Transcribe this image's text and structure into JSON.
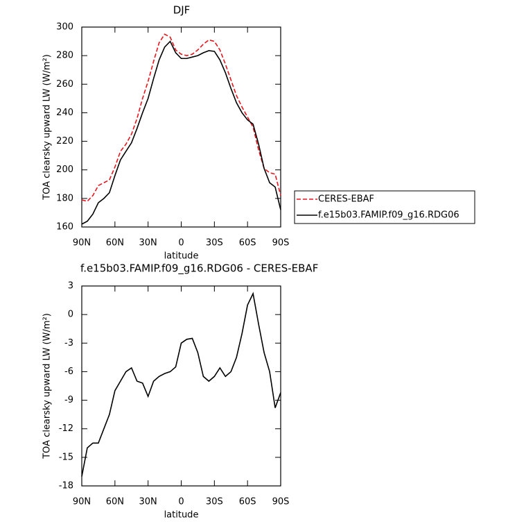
{
  "chart_data": [
    {
      "type": "line",
      "title": "DJF",
      "x_label": "latitude",
      "y_label": "TOA clearsky upward LW (W/m²)",
      "x": [
        90,
        85,
        80,
        75,
        70,
        65,
        60,
        55,
        50,
        45,
        40,
        35,
        30,
        25,
        20,
        15,
        10,
        5,
        0,
        -5,
        -10,
        -15,
        -20,
        -25,
        -30,
        -35,
        -40,
        -45,
        -50,
        -55,
        -60,
        -65,
        -70,
        -75,
        -80,
        -85,
        -90
      ],
      "xlim": [
        90,
        -90
      ],
      "xticks": [
        {
          "value": 90,
          "label": "90N"
        },
        {
          "value": 60,
          "label": "60N"
        },
        {
          "value": 30,
          "label": "30N"
        },
        0,
        {
          "value": -30,
          "label": "30S"
        },
        {
          "value": -60,
          "label": "60S"
        },
        {
          "value": -90,
          "label": "90S"
        }
      ],
      "ylim": [
        160,
        300
      ],
      "yticks": [
        160,
        180,
        200,
        220,
        240,
        260,
        280,
        300
      ],
      "series": [
        {
          "name": "CERES-EBAF",
          "color": "#e8141c",
          "dashed": true,
          "values": [
            179,
            178,
            182,
            189,
            191,
            193,
            202,
            213,
            218,
            225,
            236,
            250,
            262,
            276,
            289,
            295,
            293,
            284,
            281,
            280,
            281,
            284,
            288,
            291,
            290,
            284,
            274,
            263,
            252,
            244,
            237,
            230,
            214,
            201,
            198,
            197,
            182
          ]
        },
        {
          "name": "f.e15b03.FAMIP.f09_g16.RDG06",
          "color": "#000000",
          "dashed": false,
          "values": [
            162,
            164,
            169,
            177,
            180,
            184,
            196,
            207,
            213,
            219,
            229,
            240,
            250,
            264,
            277,
            286,
            290,
            282,
            278,
            278,
            279,
            280,
            282,
            283.5,
            283,
            277,
            268,
            257,
            247,
            240,
            235,
            232,
            218,
            201,
            191,
            188,
            172
          ]
        }
      ]
    },
    {
      "type": "line",
      "title": "f.e15b03.FAMIP.f09_g16.RDG06 - CERES-EBAF",
      "x_label": "latitude",
      "y_label": "TOA clearsky upward LW (W/m²)",
      "x": [
        90,
        85,
        80,
        75,
        70,
        65,
        60,
        55,
        50,
        45,
        40,
        35,
        30,
        25,
        20,
        15,
        10,
        5,
        0,
        -5,
        -10,
        -15,
        -20,
        -25,
        -30,
        -35,
        -40,
        -45,
        -50,
        -55,
        -60,
        -65,
        -70,
        -75,
        -80,
        -85,
        -90
      ],
      "xlim": [
        90,
        -90
      ],
      "xticks": [
        {
          "value": 90,
          "label": "90N"
        },
        {
          "value": 60,
          "label": "60N"
        },
        {
          "value": 30,
          "label": "30N"
        },
        0,
        {
          "value": -30,
          "label": "30S"
        },
        {
          "value": -60,
          "label": "60S"
        },
        {
          "value": -90,
          "label": "90S"
        }
      ],
      "ylim": [
        -18,
        3
      ],
      "yticks": [
        -18,
        -15,
        -12,
        -9,
        -6,
        -3,
        0,
        3
      ],
      "series": [
        {
          "color": "#000000",
          "dashed": false,
          "values": [
            -17,
            -14,
            -13.5,
            -13.5,
            -12,
            -10.5,
            -8,
            -7,
            -6,
            -5.6,
            -7,
            -7.2,
            -8.6,
            -7,
            -6.5,
            -6.2,
            -6,
            -5.5,
            -3,
            -2.6,
            -2.5,
            -4,
            -6.5,
            -7,
            -6.5,
            -5.6,
            -6.5,
            -6,
            -4.5,
            -2,
            1,
            2.2,
            -1,
            -4,
            -6,
            -9.8,
            -8.2
          ]
        }
      ]
    }
  ]
}
